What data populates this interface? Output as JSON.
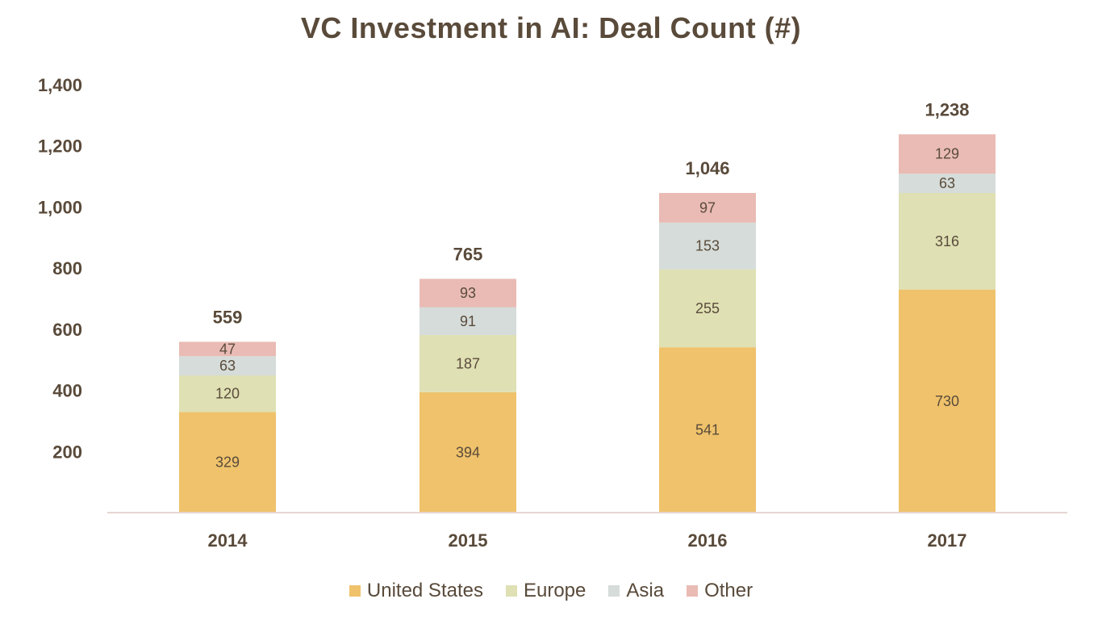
{
  "chart_data": {
    "type": "bar",
    "stacked": true,
    "title": "VC Investment in AI: Deal Count (#)",
    "xlabel": "",
    "ylabel": "",
    "categories": [
      "2014",
      "2015",
      "2016",
      "2017"
    ],
    "series": [
      {
        "name": "United States",
        "color": "#efc26b",
        "values": [
          329,
          394,
          541,
          730
        ]
      },
      {
        "name": "Europe",
        "color": "#dfe0b3",
        "values": [
          120,
          187,
          255,
          316
        ]
      },
      {
        "name": "Asia",
        "color": "#d5dcd9",
        "values": [
          63,
          91,
          153,
          63
        ]
      },
      {
        "name": "Other",
        "color": "#e9bbb4",
        "values": [
          47,
          93,
          97,
          129
        ]
      }
    ],
    "totals": [
      "559",
      "765",
      "1,046",
      "1,238"
    ],
    "ylim": [
      0,
      1400
    ],
    "yticks": [
      200,
      400,
      600,
      800,
      1000,
      1200,
      1400
    ],
    "ytick_labels": [
      "200",
      "400",
      "600",
      "800",
      "1,000",
      "1,200",
      "1,400"
    ],
    "grid": false,
    "legend_position": "bottom"
  }
}
